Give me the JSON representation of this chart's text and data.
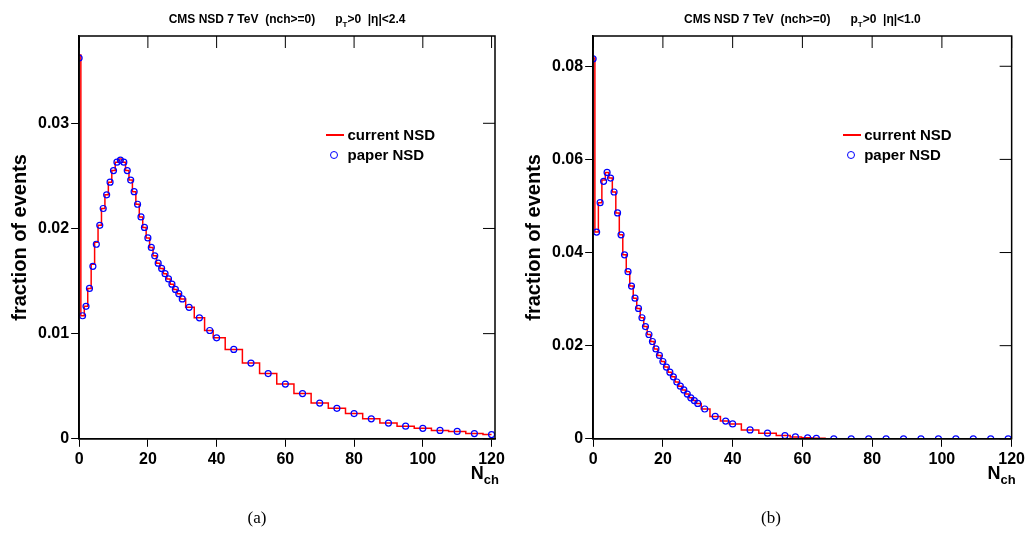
{
  "chart_data": [
    {
      "type": "step",
      "title": "CMS NSD 7 TeV  (nch>=0)      p$_{T}$>0  |η|<2.4",
      "xlabel": "N$_{ch}$",
      "ylabel": "fraction of events",
      "xlim": [
        0,
        121
      ],
      "xticks": [
        0,
        20,
        40,
        60,
        80,
        100,
        120
      ],
      "ylim": [
        0,
        0.0383
      ],
      "yticks": [
        0,
        0.01,
        0.02,
        0.03
      ],
      "legend": "top right",
      "annotations": [
        "(a)"
      ],
      "series": [
        {
          "name": "current NSD",
          "color": "#ff0000",
          "x": [
            0,
            1,
            2,
            3,
            4,
            5,
            6,
            7,
            8,
            9,
            10,
            11,
            12,
            13,
            14,
            15,
            16,
            17,
            18,
            19,
            20,
            21,
            22,
            23,
            24,
            25,
            26,
            27,
            28,
            29,
            30,
            32,
            35,
            38,
            40,
            45,
            50,
            55,
            60,
            65,
            70,
            75,
            80,
            85,
            90,
            95,
            100,
            105,
            110,
            115,
            120
          ],
          "values": [
            0.0365,
            0.0117,
            0.0126,
            0.0143,
            0.0166,
            0.0187,
            0.0203,
            0.0219,
            0.0232,
            0.0244,
            0.0255,
            0.0263,
            0.0266,
            0.0263,
            0.0255,
            0.0246,
            0.0235,
            0.0223,
            0.0211,
            0.0201,
            0.0191,
            0.0182,
            0.0174,
            0.0167,
            0.0162,
            0.0157,
            0.0152,
            0.0147,
            0.0142,
            0.0138,
            0.0133,
            0.0125,
            0.0115,
            0.0103,
            0.0096,
            0.0085,
            0.0072,
            0.0062,
            0.0052,
            0.0043,
            0.0034,
            0.0029,
            0.0024,
            0.0019,
            0.0015,
            0.0012,
            0.001,
            0.0008,
            0.0007,
            0.0005,
            0.0004
          ]
        },
        {
          "name": "paper NSD",
          "type": "scatter",
          "marker": "circle",
          "color": "#0000ff",
          "x": [
            0,
            1,
            2,
            3,
            4,
            5,
            6,
            7,
            8,
            9,
            10,
            11,
            12,
            13,
            14,
            15,
            16,
            17,
            18,
            19,
            20,
            21,
            22,
            23,
            24,
            25,
            26,
            27,
            28,
            29,
            30,
            32,
            35,
            38,
            40,
            45,
            50,
            55,
            60,
            65,
            70,
            75,
            80,
            85,
            90,
            95,
            100,
            105,
            110,
            115,
            120
          ],
          "values": [
            0.0362,
            0.0117,
            0.0126,
            0.0143,
            0.0164,
            0.0185,
            0.0203,
            0.0219,
            0.0232,
            0.0244,
            0.0255,
            0.0263,
            0.0265,
            0.0263,
            0.0255,
            0.0246,
            0.0235,
            0.0223,
            0.0211,
            0.0201,
            0.0191,
            0.0182,
            0.0174,
            0.0167,
            0.0162,
            0.0157,
            0.0152,
            0.0147,
            0.0142,
            0.0138,
            0.0133,
            0.0125,
            0.0115,
            0.0103,
            0.0096,
            0.0085,
            0.0072,
            0.0062,
            0.0052,
            0.0043,
            0.0034,
            0.0029,
            0.0024,
            0.0019,
            0.0015,
            0.0012,
            0.001,
            0.0008,
            0.0007,
            0.0005,
            0.0004
          ]
        }
      ]
    },
    {
      "type": "step",
      "title": "CMS NSD 7 TeV  (nch>=0)      p$_{T}$>0  |η|<1.0",
      "xlabel": "N$_{ch}$",
      "ylabel": "fraction of events",
      "xlim": [
        0,
        120
      ],
      "xticks": [
        0,
        20,
        40,
        60,
        80,
        100,
        120
      ],
      "ylim": [
        0,
        0.0865
      ],
      "yticks": [
        0,
        0.02,
        0.04,
        0.06,
        0.08
      ],
      "legend": "top right",
      "annotations": [
        "(b)"
      ],
      "series": [
        {
          "name": "current NSD",
          "color": "#ff0000",
          "x": [
            0,
            1,
            2,
            3,
            4,
            5,
            6,
            7,
            8,
            9,
            10,
            11,
            12,
            13,
            14,
            15,
            16,
            17,
            18,
            19,
            20,
            21,
            22,
            23,
            24,
            25,
            26,
            27,
            28,
            29,
            30,
            32,
            35,
            38,
            40,
            45,
            50,
            55,
            58,
            61.5,
            64,
            69,
            74
          ],
          "values": [
            0.0818,
            0.0444,
            0.0507,
            0.0556,
            0.0572,
            0.056,
            0.053,
            0.0485,
            0.0438,
            0.0395,
            0.0359,
            0.0328,
            0.0302,
            0.028,
            0.026,
            0.0241,
            0.0224,
            0.0209,
            0.0193,
            0.0179,
            0.0166,
            0.0154,
            0.0143,
            0.0133,
            0.0122,
            0.0113,
            0.0105,
            0.0096,
            0.0088,
            0.0082,
            0.0076,
            0.0064,
            0.0048,
            0.0038,
            0.0032,
            0.0019,
            0.0012,
            0.0007,
            0.0004,
            0.0002,
            0.0001,
            0,
            0
          ]
        },
        {
          "name": "paper NSD",
          "type": "scatter",
          "marker": "circle",
          "color": "#0000ff",
          "x": [
            0,
            1,
            2,
            3,
            4,
            5,
            6,
            7,
            8,
            9,
            10,
            11,
            12,
            13,
            14,
            15,
            16,
            17,
            18,
            19,
            20,
            21,
            22,
            23,
            24,
            25,
            26,
            27,
            28,
            29,
            30,
            32,
            35,
            38,
            40,
            45,
            50,
            55,
            58,
            61.5,
            64,
            69,
            74,
            79,
            84,
            89,
            94,
            99,
            104,
            109,
            114,
            119
          ],
          "values": [
            0.0816,
            0.0444,
            0.0507,
            0.0553,
            0.0572,
            0.056,
            0.053,
            0.0485,
            0.0438,
            0.0395,
            0.0359,
            0.0328,
            0.0302,
            0.028,
            0.026,
            0.0241,
            0.0224,
            0.0209,
            0.0193,
            0.0179,
            0.0166,
            0.0154,
            0.0143,
            0.0133,
            0.0122,
            0.0113,
            0.0105,
            0.0096,
            0.0088,
            0.0082,
            0.0076,
            0.0064,
            0.0048,
            0.0038,
            0.0032,
            0.0019,
            0.0012,
            0.0007,
            0.0004,
            0.0002,
            0.0001,
            0,
            0,
            0,
            0,
            0,
            0,
            0,
            0,
            0,
            0,
            0
          ]
        }
      ]
    }
  ]
}
